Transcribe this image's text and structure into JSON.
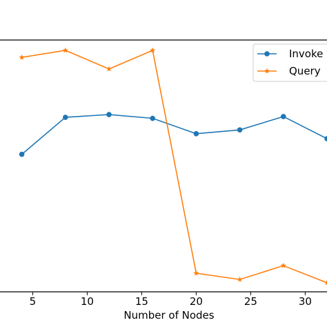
{
  "chart_data": {
    "type": "line",
    "xlabel": "Number of Nodes",
    "ylabel": "",
    "xlim": [
      2,
      32
    ],
    "xticks": [
      5,
      10,
      15,
      20,
      25,
      30
    ],
    "ylim": [
      0,
      100
    ],
    "grid": false,
    "legend_position": "top-right",
    "x": [
      4,
      8,
      12,
      16,
      20,
      24,
      28,
      32
    ],
    "series": [
      {
        "name": "Invoke",
        "marker": "circle",
        "color": "#1f77b4",
        "values": [
          54.6,
          69.3,
          70.4,
          68.9,
          62.8,
          64.3,
          69.6,
          60.8
        ]
      },
      {
        "name": "Query",
        "marker": "star",
        "color": "#ff7f0e",
        "values": [
          93.1,
          95.9,
          88.5,
          95.9,
          7.4,
          4.9,
          10.4,
          3.6
        ]
      }
    ]
  }
}
